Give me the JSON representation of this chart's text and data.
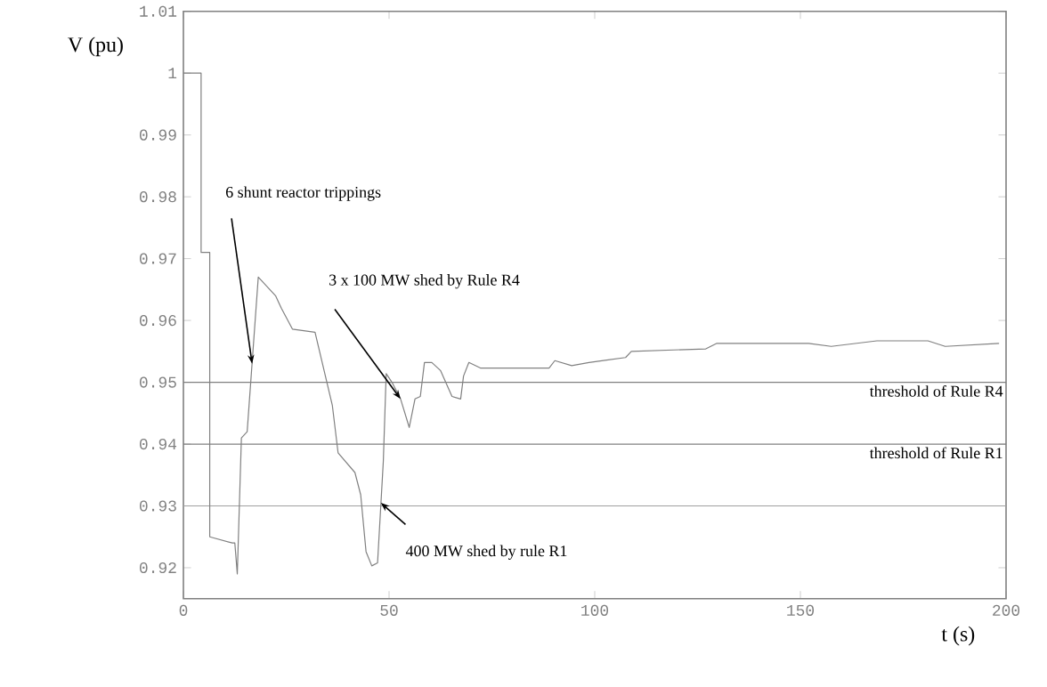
{
  "chart_data": {
    "type": "line",
    "xlabel": "t (s)",
    "ylabel": "V (pu)",
    "x": [
      0,
      4.3,
      4.3,
      6.4,
      6.4,
      11.9,
      12.5,
      13.1,
      14.1,
      15.5,
      18.2,
      19.6,
      22.4,
      23.8,
      26.5,
      32,
      36.2,
      37.6,
      41.7,
      43.1,
      44.4,
      45.8,
      47.2,
      48.6,
      49.3,
      50.7,
      52.8,
      54.9,
      56.3,
      57.6,
      58.6,
      60.4,
      62.5,
      65.3,
      67.4,
      68.1,
      69.4,
      72.2,
      88.9,
      90.3,
      94.4,
      98.6,
      102.9,
      107.5,
      108.9,
      127,
      129.7,
      152,
      157.5,
      168.6,
      181,
      185.2,
      198.3
    ],
    "values": [
      1.0,
      1.0,
      0.971,
      0.971,
      0.925,
      0.924,
      0.924,
      0.919,
      0.941,
      0.942,
      0.967,
      0.966,
      0.964,
      0.962,
      0.9586,
      0.9581,
      0.9463,
      0.9386,
      0.9354,
      0.9318,
      0.9226,
      0.9203,
      0.9208,
      0.9372,
      0.9514,
      0.95,
      0.9473,
      0.9427,
      0.9473,
      0.9477,
      0.9532,
      0.9532,
      0.9519,
      0.9477,
      0.9473,
      0.951,
      0.9532,
      0.9523,
      0.9523,
      0.9535,
      0.9527,
      0.9532,
      0.9536,
      0.954,
      0.955,
      0.9554,
      0.9563,
      0.9563,
      0.9558,
      0.9567,
      0.9567,
      0.9558,
      0.9563
    ],
    "color": "#808080",
    "xlim": [
      0,
      200
    ],
    "ylim": [
      0.915,
      1.01
    ],
    "xticks": [
      0,
      50,
      100,
      150,
      200
    ],
    "yticks": [
      0.92,
      0.93,
      0.94,
      0.95,
      0.96,
      0.97,
      0.98,
      0.99,
      1,
      1.01
    ],
    "ref_lines": [
      {
        "axis": "y",
        "value": 0.95,
        "label": "threshold of Rule R4",
        "color": "#808080"
      },
      {
        "axis": "y",
        "value": 0.94,
        "label": "threshold of Rule R1",
        "color": "#808080"
      },
      {
        "axis": "y",
        "value": 0.93,
        "color": "#a0a0a0"
      }
    ],
    "annotations": [
      {
        "text": "6 shunt reactor trippings",
        "x": 16.7,
        "y": 0.953
      },
      {
        "text": "3 x 100 MW shed by Rule R4",
        "x": 52.8,
        "y": 0.9473
      },
      {
        "text": "400 MW shed by rule R1",
        "x": 48.0,
        "y": 0.9305
      }
    ]
  }
}
